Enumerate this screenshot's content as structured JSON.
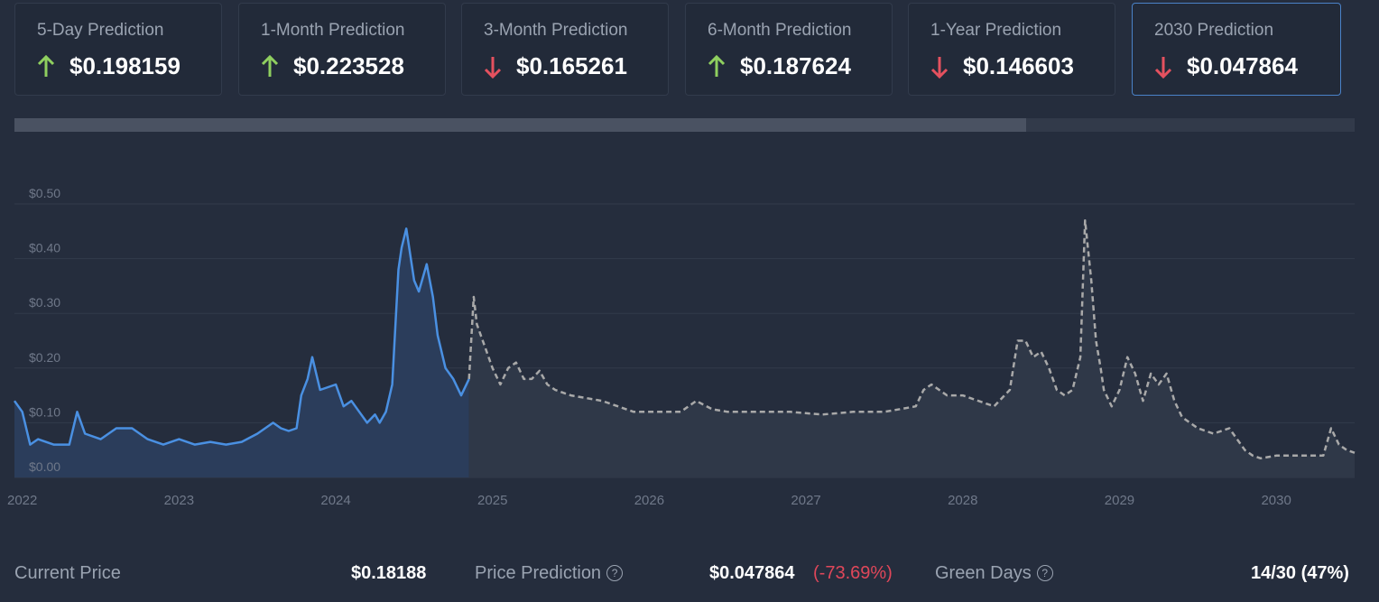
{
  "colors": {
    "up": "#8fcf5f",
    "down": "#e5515f",
    "history_line": "#4a90e2",
    "forecast_line": "#a9a9a9",
    "background": "#252d3d"
  },
  "cards": [
    {
      "label": "5-Day Prediction",
      "value": "$0.198159",
      "direction": "up",
      "icon": "arrow-up-icon",
      "selected": false
    },
    {
      "label": "1-Month Prediction",
      "value": "$0.223528",
      "direction": "up",
      "icon": "arrow-up-icon",
      "selected": false
    },
    {
      "label": "3-Month Prediction",
      "value": "$0.165261",
      "direction": "down",
      "icon": "arrow-down-icon",
      "selected": false
    },
    {
      "label": "6-Month Prediction",
      "value": "$0.187624",
      "direction": "up",
      "icon": "arrow-up-icon",
      "selected": false
    },
    {
      "label": "1-Year Prediction",
      "value": "$0.146603",
      "direction": "down",
      "icon": "arrow-down-icon",
      "selected": false
    },
    {
      "label": "2030 Prediction",
      "value": "$0.047864",
      "direction": "down",
      "icon": "arrow-down-icon",
      "selected": true
    }
  ],
  "range_selector": {
    "fill_fraction": 0.755
  },
  "chart_data": {
    "type": "line",
    "title": "",
    "xlabel": "",
    "ylabel": "",
    "x_range": [
      2021.95,
      2030.5
    ],
    "ylim": [
      0,
      0.5
    ],
    "y_ticks": [
      {
        "value": 0.0,
        "label": "$0.00"
      },
      {
        "value": 0.1,
        "label": "$0.10"
      },
      {
        "value": 0.2,
        "label": "$0.20"
      },
      {
        "value": 0.3,
        "label": "$0.30"
      },
      {
        "value": 0.4,
        "label": "$0.40"
      },
      {
        "value": 0.5,
        "label": "$0.50"
      }
    ],
    "x_ticks": [
      {
        "value": 2022,
        "label": "2022"
      },
      {
        "value": 2023,
        "label": "2023"
      },
      {
        "value": 2024,
        "label": "2024"
      },
      {
        "value": 2025,
        "label": "2025"
      },
      {
        "value": 2026,
        "label": "2026"
      },
      {
        "value": 2027,
        "label": "2027"
      },
      {
        "value": 2028,
        "label": "2028"
      },
      {
        "value": 2029,
        "label": "2029"
      },
      {
        "value": 2030,
        "label": "2030"
      }
    ],
    "grid": true,
    "series": [
      {
        "style": "solid",
        "x": [
          2021.95,
          2022.0,
          2022.05,
          2022.1,
          2022.2,
          2022.3,
          2022.35,
          2022.4,
          2022.5,
          2022.6,
          2022.7,
          2022.8,
          2022.9,
          2023.0,
          2023.1,
          2023.2,
          2023.3,
          2023.4,
          2023.5,
          2023.6,
          2023.65,
          2023.7,
          2023.75,
          2023.78,
          2023.82,
          2023.85,
          2023.9,
          2024.0,
          2024.05,
          2024.1,
          2024.15,
          2024.2,
          2024.25,
          2024.28,
          2024.32,
          2024.36,
          2024.4,
          2024.42,
          2024.45,
          2024.5,
          2024.53,
          2024.58,
          2024.62,
          2024.65,
          2024.7,
          2024.75,
          2024.8,
          2024.85
        ],
        "y": [
          0.14,
          0.12,
          0.06,
          0.07,
          0.06,
          0.06,
          0.12,
          0.08,
          0.07,
          0.09,
          0.09,
          0.07,
          0.06,
          0.07,
          0.06,
          0.065,
          0.06,
          0.065,
          0.08,
          0.1,
          0.09,
          0.085,
          0.09,
          0.15,
          0.18,
          0.22,
          0.16,
          0.17,
          0.13,
          0.14,
          0.12,
          0.1,
          0.115,
          0.1,
          0.12,
          0.17,
          0.38,
          0.42,
          0.455,
          0.36,
          0.34,
          0.39,
          0.33,
          0.26,
          0.2,
          0.18,
          0.15,
          0.18
        ]
      },
      {
        "style": "dashed",
        "x": [
          2024.85,
          2024.88,
          2024.9,
          2024.95,
          2025.0,
          2025.05,
          2025.1,
          2025.15,
          2025.2,
          2025.25,
          2025.3,
          2025.35,
          2025.4,
          2025.5,
          2025.6,
          2025.7,
          2025.8,
          2025.9,
          2026.0,
          2026.1,
          2026.2,
          2026.3,
          2026.4,
          2026.5,
          2026.7,
          2026.9,
          2027.1,
          2027.3,
          2027.5,
          2027.6,
          2027.7,
          2027.75,
          2027.8,
          2027.9,
          2028.0,
          2028.1,
          2028.2,
          2028.3,
          2028.35,
          2028.4,
          2028.45,
          2028.5,
          2028.55,
          2028.6,
          2028.65,
          2028.7,
          2028.75,
          2028.78,
          2028.82,
          2028.85,
          2028.88,
          2028.9,
          2028.95,
          2029.0,
          2029.05,
          2029.1,
          2029.15,
          2029.2,
          2029.25,
          2029.3,
          2029.35,
          2029.4,
          2029.45,
          2029.5,
          2029.6,
          2029.7,
          2029.8,
          2029.85,
          2029.9,
          2030.0,
          2030.1,
          2030.2,
          2030.3,
          2030.35,
          2030.4,
          2030.45,
          2030.5
        ],
        "y": [
          0.18,
          0.33,
          0.28,
          0.24,
          0.2,
          0.17,
          0.2,
          0.21,
          0.18,
          0.18,
          0.195,
          0.17,
          0.16,
          0.15,
          0.145,
          0.14,
          0.13,
          0.12,
          0.12,
          0.12,
          0.12,
          0.14,
          0.125,
          0.12,
          0.12,
          0.12,
          0.115,
          0.12,
          0.12,
          0.125,
          0.13,
          0.16,
          0.17,
          0.15,
          0.15,
          0.14,
          0.13,
          0.16,
          0.25,
          0.25,
          0.22,
          0.23,
          0.2,
          0.16,
          0.15,
          0.16,
          0.22,
          0.47,
          0.36,
          0.25,
          0.2,
          0.16,
          0.13,
          0.16,
          0.22,
          0.19,
          0.14,
          0.19,
          0.17,
          0.19,
          0.14,
          0.11,
          0.1,
          0.09,
          0.08,
          0.09,
          0.05,
          0.04,
          0.035,
          0.04,
          0.04,
          0.04,
          0.04,
          0.09,
          0.06,
          0.05,
          0.045
        ]
      }
    ]
  },
  "footer": {
    "current_price_label": "Current Price",
    "current_price_value": "$0.18188",
    "prediction_label": "Price Prediction",
    "prediction_value": "$0.047864",
    "prediction_change": "(-73.69%)",
    "green_days_label": "Green Days",
    "green_days_value": "14/30 (47%)",
    "help_icon": "question-circle-icon",
    "help_glyph": "?"
  }
}
